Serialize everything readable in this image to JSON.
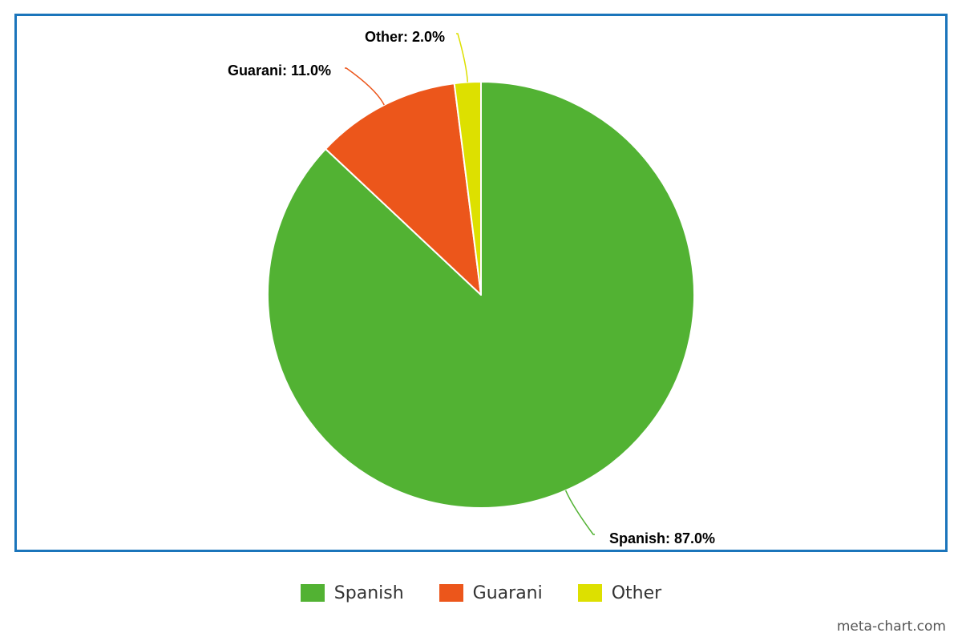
{
  "chart_data": {
    "type": "pie",
    "slices": [
      {
        "name": "Spanish",
        "value": 87.0,
        "label": "Spanish: 87.0%",
        "color": "#52b233"
      },
      {
        "name": "Guarani",
        "value": 11.0,
        "label": "Guarani: 11.0%",
        "color": "#ec561b"
      },
      {
        "name": "Other",
        "value": 2.0,
        "label": "Other: 2.0%",
        "color": "#dde000"
      }
    ],
    "legend": {
      "placement": "bottom",
      "items": [
        {
          "label": "Spanish",
          "color": "#52b233"
        },
        {
          "label": "Guarani",
          "color": "#ec561b"
        },
        {
          "label": "Other",
          "color": "#dde000"
        }
      ]
    },
    "border_color": "#1b75bb"
  },
  "watermark": "meta-chart.com"
}
